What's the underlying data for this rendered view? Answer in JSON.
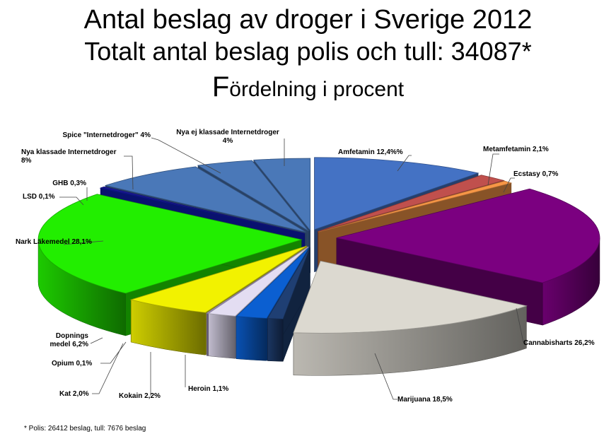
{
  "title_line1": "Antal beslag av droger i Sverige 2012",
  "title_line2": "Totalt antal beslag polis och tull: 34087*",
  "title_line3_initial": "F",
  "title_line3_rest": "ördelning i procent",
  "footnote": "* Polis: 26412 beslag, tull: 7676 beslag",
  "chart_data": {
    "type": "pie",
    "style": "3d-exploded",
    "title": "Antal beslag av droger i Sverige 2012",
    "subtitle": "Totalt antal beslag polis och tull: 34087*",
    "unit": "procent",
    "slices": [
      {
        "label": "Amfetamin 12,4%%",
        "value": 12.4,
        "color": "#4472C4"
      },
      {
        "label": "Metamfetamin 2,1%",
        "value": 2.1,
        "color": "#C0504D"
      },
      {
        "label": "Ecstasy 0,7%",
        "value": 0.7,
        "color": "#F79646"
      },
      {
        "label": "Cannabisharts 26,2%",
        "value": 26.2,
        "color": "#7B0080"
      },
      {
        "label": "Marijuana 18,5%",
        "value": 18.5,
        "color": "#DCD9D0"
      },
      {
        "label": "Heroin 1,1%",
        "value": 1.1,
        "color": "#1F3F73"
      },
      {
        "label": "Kokain 2,2%",
        "value": 2.2,
        "color": "#0B5FD1"
      },
      {
        "label": "Kat 2,0%",
        "value": 2.0,
        "color": "#E3DDF2"
      },
      {
        "label": "Opium 0,1%",
        "value": 0.1,
        "color": "#B9A8D9"
      },
      {
        "label": "Dopnings medel 6,2%",
        "value": 6.2,
        "color": "#F2F200"
      },
      {
        "label": "Nark Läkemedel 28,1%",
        "value": 28.1,
        "color": "#22EE00"
      },
      {
        "label": "LSD 0,1%",
        "value": 0.1,
        "color": "#1020C8"
      },
      {
        "label": "GHB 0,3%",
        "value": 0.3,
        "color": "#1A1AA0"
      },
      {
        "label": "Nya klassade Internetdroger 8%",
        "value": 8,
        "color": "#4A78B8"
      },
      {
        "label": "Spice \"Internetdroger\" 4%",
        "value": 4,
        "color": "#4A78B8"
      },
      {
        "label": "Nya ej klassade Internetdroger 4%",
        "value": 4,
        "color": "#4A78B8"
      }
    ],
    "labels": [
      {
        "lines": [
          "Amfetamin 12,4%%"
        ]
      },
      {
        "lines": [
          "Metamfetamin 2,1%"
        ]
      },
      {
        "lines": [
          "Ecstasy 0,7%"
        ]
      },
      {
        "lines": [
          "Cannabisharts 26,2%"
        ]
      },
      {
        "lines": [
          "Marijuana 18,5%"
        ]
      },
      {
        "lines": [
          "Heroin 1,1%"
        ]
      },
      {
        "lines": [
          "Kokain 2,2%"
        ]
      },
      {
        "lines": [
          "Kat 2,0%"
        ]
      },
      {
        "lines": [
          "Opium 0,1%"
        ]
      },
      {
        "lines": [
          "Dopnings",
          "medel 6,2%"
        ]
      },
      {
        "lines": [
          "Nark Läkemedel 28,1%"
        ]
      },
      {
        "lines": [
          "LSD 0,1%"
        ]
      },
      {
        "lines": [
          "GHB 0,3%"
        ]
      },
      {
        "lines": [
          "Nya klassade Internetdroger",
          "8%"
        ]
      },
      {
        "lines": [
          "Spice \"Internetdroger\" 4%"
        ]
      },
      {
        "lines": [
          "Nya ej klassade Internetdroger",
          "4%"
        ]
      }
    ],
    "legend": "none",
    "grid": false
  }
}
